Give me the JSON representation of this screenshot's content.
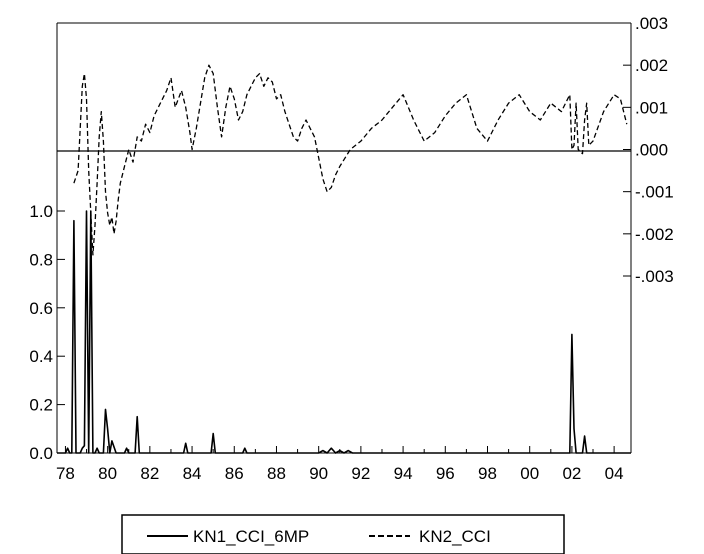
{
  "chart_data": {
    "type": "line",
    "title": "",
    "grid": false,
    "legend_position": "bottom",
    "x_tick_labels": [
      "78",
      "80",
      "82",
      "84",
      "86",
      "88",
      "90",
      "92",
      "94",
      "96",
      "98",
      "00",
      "02",
      "04"
    ],
    "x_range": [
      1977.6,
      2004.8
    ],
    "left_axis": {
      "range": [
        0.0,
        1.25
      ],
      "tick_values": [
        0.0,
        0.2,
        0.4,
        0.6,
        0.8,
        1.0
      ],
      "tick_labels": [
        "0.0",
        "0.2",
        "0.4",
        "0.6",
        "0.8",
        "1.0"
      ]
    },
    "right_axis": {
      "range": [
        -0.003,
        0.003
      ],
      "tick_values": [
        0.003,
        0.002,
        0.001,
        0.0,
        -0.001,
        -0.002,
        -0.003
      ],
      "tick_labels": [
        ".003",
        ".002",
        ".001",
        ".000",
        "-.001",
        "-.002",
        "-.003"
      ]
    },
    "series": [
      {
        "name": "KN1_CCI_6MP",
        "axis": "left",
        "style": "solid",
        "x": [
          1977.6,
          1978.0,
          1978.1,
          1978.2,
          1978.3,
          1978.4,
          1978.5,
          1978.6,
          1978.7,
          1978.8,
          1978.9,
          1979.0,
          1979.1,
          1979.2,
          1979.3,
          1979.4,
          1979.5,
          1979.6,
          1979.7,
          1979.8,
          1979.9,
          1980.0,
          1980.1,
          1980.2,
          1980.4,
          1980.6,
          1980.8,
          1980.9,
          1981.0,
          1981.2,
          1981.3,
          1981.4,
          1981.5,
          1981.6,
          1982.0,
          1983.0,
          1983.6,
          1983.7,
          1983.8,
          1984.0,
          1984.5,
          1984.8,
          1984.9,
          1985.0,
          1985.1,
          1985.3,
          1985.5,
          1986.0,
          1986.4,
          1986.5,
          1986.6,
          1987.0,
          1988.0,
          1989.0,
          1990.0,
          1990.2,
          1990.4,
          1990.6,
          1990.8,
          1991.0,
          1991.2,
          1991.4,
          1991.6,
          1992.0,
          1994.0,
          1996.0,
          1998.0,
          2000.0,
          2001.0,
          2001.4,
          2001.6,
          2001.8,
          2001.9,
          2002.0,
          2002.1,
          2002.2,
          2002.3,
          2002.5,
          2002.6,
          2002.7,
          2002.8,
          2003.0,
          2004.0,
          2004.8
        ],
        "values": [
          0.0,
          0.0,
          0.02,
          0.0,
          0.0,
          0.96,
          0.0,
          0.0,
          0.0,
          0.02,
          0.03,
          1.0,
          0.0,
          1.0,
          0.0,
          0.0,
          0.02,
          0.0,
          0.0,
          0.0,
          0.18,
          0.1,
          0.0,
          0.05,
          0.0,
          0.0,
          0.0,
          0.02,
          0.0,
          0.0,
          0.0,
          0.15,
          0.0,
          0.0,
          0.0,
          0.0,
          0.0,
          0.04,
          0.0,
          0.0,
          0.0,
          0.0,
          0.0,
          0.08,
          0.0,
          0.0,
          0.0,
          0.0,
          0.0,
          0.02,
          0.0,
          0.0,
          0.0,
          0.0,
          0.0,
          0.01,
          0.0,
          0.02,
          0.0,
          0.01,
          0.0,
          0.01,
          0.0,
          0.0,
          0.0,
          0.0,
          0.0,
          0.0,
          0.0,
          0.0,
          0.0,
          0.0,
          0.0,
          0.49,
          0.1,
          0.0,
          0.0,
          0.0,
          0.07,
          0.0,
          0.0,
          0.0,
          0.0,
          0.0
        ]
      },
      {
        "name": "KN2_CCI",
        "axis": "right",
        "style": "dashed",
        "x": [
          1978.4,
          1978.6,
          1978.8,
          1978.9,
          1979.0,
          1979.1,
          1979.2,
          1979.3,
          1979.4,
          1979.5,
          1979.6,
          1979.7,
          1979.8,
          1979.9,
          1980.0,
          1980.1,
          1980.2,
          1980.3,
          1980.4,
          1980.5,
          1980.6,
          1980.8,
          1981.0,
          1981.2,
          1981.4,
          1981.6,
          1981.8,
          1982.0,
          1982.2,
          1982.5,
          1982.8,
          1983.0,
          1983.2,
          1983.5,
          1983.7,
          1983.9,
          1984.0,
          1984.2,
          1984.4,
          1984.6,
          1984.8,
          1985.0,
          1985.2,
          1985.4,
          1985.6,
          1985.8,
          1986.0,
          1986.2,
          1986.4,
          1986.6,
          1986.8,
          1987.0,
          1987.2,
          1987.4,
          1987.6,
          1987.8,
          1988.0,
          1988.2,
          1988.4,
          1988.6,
          1988.8,
          1989.0,
          1989.2,
          1989.4,
          1989.6,
          1989.8,
          1990.0,
          1990.2,
          1990.4,
          1990.6,
          1990.8,
          1991.0,
          1991.5,
          1992.0,
          1992.5,
          1993.0,
          1993.5,
          1994.0,
          1994.5,
          1995.0,
          1995.5,
          1996.0,
          1996.5,
          1997.0,
          1997.5,
          1998.0,
          1998.5,
          1999.0,
          1999.5,
          2000.0,
          2000.5,
          2001.0,
          2001.5,
          2001.8,
          2001.9,
          2002.0,
          2002.1,
          2002.2,
          2002.3,
          2002.5,
          2002.6,
          2002.7,
          2002.8,
          2003.0,
          2003.5,
          2004.0,
          2004.3,
          2004.6
        ],
        "values": [
          -0.0008,
          -0.0005,
          0.0015,
          0.0018,
          0.0012,
          -0.0005,
          -0.0015,
          -0.0025,
          -0.0018,
          -0.0008,
          0.0003,
          0.0009,
          0.0002,
          -0.001,
          -0.0015,
          -0.0018,
          -0.0016,
          -0.002,
          -0.0017,
          -0.0012,
          -0.0008,
          -0.0004,
          0.0,
          -0.0003,
          0.0003,
          0.0002,
          0.0006,
          0.0004,
          0.0008,
          0.0011,
          0.0014,
          0.0017,
          0.001,
          0.0014,
          0.001,
          0.0004,
          0.0,
          0.0005,
          0.0011,
          0.0017,
          0.002,
          0.0018,
          0.001,
          0.0003,
          0.001,
          0.0015,
          0.0012,
          0.0007,
          0.0009,
          0.0013,
          0.0015,
          0.0017,
          0.0018,
          0.0015,
          0.0017,
          0.0016,
          0.0012,
          0.0013,
          0.0009,
          0.0006,
          0.0003,
          0.0002,
          0.0005,
          0.0007,
          0.0005,
          0.0003,
          -0.0002,
          -0.0007,
          -0.001,
          -0.0009,
          -0.0006,
          -0.0004,
          0.0,
          0.0002,
          0.0005,
          0.0007,
          0.001,
          0.0013,
          0.0007,
          0.0002,
          0.0004,
          0.0008,
          0.0011,
          0.0013,
          0.0005,
          0.0002,
          0.0007,
          0.0011,
          0.0013,
          0.0009,
          0.0007,
          0.0011,
          0.0009,
          0.0012,
          0.0013,
          0.0,
          0.0001,
          0.0011,
          0.0,
          -0.0001,
          0.0007,
          0.0011,
          0.0001,
          0.0002,
          0.0009,
          0.0013,
          0.0012,
          0.0006
        ]
      }
    ]
  }
}
